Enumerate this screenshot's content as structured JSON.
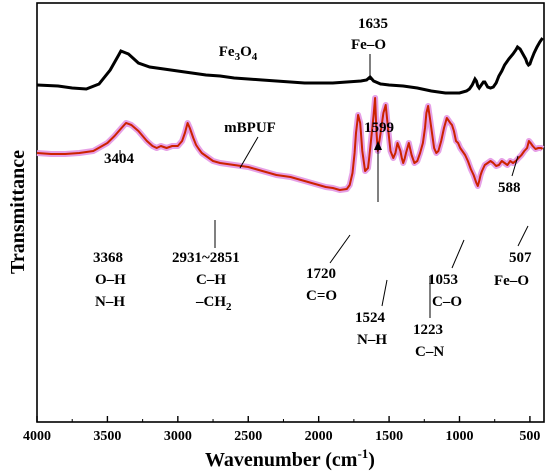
{
  "chart_data": {
    "type": "line",
    "title": "",
    "xlabel": "Wavenumber (cm",
    "xlabel_sup": "-1",
    "xlabel_close": ")",
    "ylabel": "Transmittance",
    "xlim": [
      4000,
      400
    ],
    "x_reversed": true,
    "x_ticks": [
      "4000",
      "3500",
      "3000",
      "2500",
      "2000",
      "1500",
      "1000",
      "500"
    ],
    "y_ticks_shown": false,
    "grid": false,
    "series": [
      {
        "name_parts": [
          {
            "t": "Fe",
            "sub": false
          },
          {
            "t": "3",
            "sub": true
          },
          {
            "t": "O",
            "sub": false
          },
          {
            "t": "4",
            "sub": true
          }
        ],
        "color": "#000000",
        "x": [
          4000,
          3850,
          3750,
          3650,
          3560,
          3480,
          3420,
          3404,
          3350,
          3280,
          3200,
          3100,
          3000,
          2900,
          2800,
          2700,
          2600,
          2500,
          2400,
          2300,
          2200,
          2100,
          2000,
          1900,
          1800,
          1700,
          1660,
          1635,
          1610,
          1560,
          1500,
          1400,
          1300,
          1200,
          1100,
          1000,
          950,
          930,
          910,
          890,
          880,
          870,
          860,
          850,
          830,
          820,
          800,
          780,
          760,
          740,
          720,
          700,
          680,
          650,
          620,
          600,
          588,
          570,
          550,
          530,
          520,
          510,
          500,
          490,
          470,
          450,
          430,
          410
        ],
        "y": [
          82,
          83,
          85,
          86,
          81,
          67,
          52,
          48,
          51,
          60,
          64,
          66,
          68,
          70,
          72,
          73,
          75,
          76,
          77,
          78,
          79,
          80,
          80,
          80,
          79,
          78,
          77,
          74,
          78,
          81,
          82,
          83,
          85,
          88,
          90,
          90,
          88,
          86,
          82,
          76,
          78,
          83,
          85,
          83,
          79,
          79,
          84,
          85,
          84,
          80,
          73,
          68,
          62,
          56,
          51,
          47,
          44,
          46,
          51,
          56,
          60,
          62,
          61,
          57,
          50,
          44,
          39,
          35
        ],
        "annotations": [
          {
            "x": 3404,
            "lines": [
              "3404"
            ]
          },
          {
            "x": 1635,
            "lines": [
              "1635",
              "Fe–O"
            ]
          },
          {
            "x": 588,
            "lines": [
              "588"
            ]
          }
        ]
      },
      {
        "name": "mBPUF",
        "color": "#e090e0",
        "color_inner": "#cc2200",
        "x": [
          4000,
          3900,
          3800,
          3700,
          3600,
          3500,
          3450,
          3400,
          3368,
          3330,
          3280,
          3220,
          3180,
          3150,
          3120,
          3080,
          3040,
          3000,
          2970,
          2950,
          2931,
          2915,
          2890,
          2870,
          2851,
          2830,
          2800,
          2750,
          2700,
          2650,
          2600,
          2550,
          2500,
          2450,
          2400,
          2350,
          2300,
          2250,
          2200,
          2150,
          2100,
          2050,
          2000,
          1950,
          1900,
          1850,
          1800,
          1780,
          1760,
          1745,
          1735,
          1720,
          1705,
          1690,
          1670,
          1650,
          1640,
          1620,
          1610,
          1599,
          1590,
          1580,
          1560,
          1540,
          1524,
          1510,
          1490,
          1470,
          1455,
          1440,
          1420,
          1410,
          1400,
          1390,
          1380,
          1360,
          1340,
          1320,
          1300,
          1280,
          1260,
          1245,
          1235,
          1223,
          1210,
          1195,
          1180,
          1165,
          1150,
          1130,
          1110,
          1090,
          1075,
          1065,
          1053,
          1040,
          1025,
          1010,
          995,
          980,
          960,
          940,
          920,
          900,
          880,
          870,
          860,
          850,
          840,
          830,
          820,
          800,
          780,
          760,
          740,
          720,
          700,
          680,
          660,
          640,
          620,
          600,
          580,
          560,
          540,
          520,
          507,
          495,
          480,
          460,
          440,
          420,
          410
        ],
        "y": [
          150,
          151,
          151,
          150,
          148,
          140,
          133,
          125,
          120,
          122,
          128,
          138,
          143,
          145,
          143,
          145,
          143,
          143,
          138,
          130,
          120,
          125,
          135,
          142,
          146,
          150,
          153,
          158,
          160,
          161,
          162,
          163,
          164,
          166,
          168,
          170,
          172,
          173,
          174,
          176,
          178,
          180,
          182,
          184,
          185,
          187,
          186,
          182,
          170,
          150,
          130,
          112,
          120,
          148,
          168,
          165,
          153,
          126,
          112,
          95,
          128,
          148,
          130,
          110,
          102,
          122,
          148,
          155,
          150,
          140,
          148,
          155,
          160,
          156,
          150,
          140,
          152,
          160,
          158,
          150,
          140,
          125,
          110,
          103,
          115,
          130,
          145,
          150,
          148,
          138,
          125,
          115,
          118,
          120,
          122,
          128,
          138,
          140,
          145,
          148,
          152,
          158,
          166,
          172,
          180,
          183,
          178,
          172,
          168,
          165,
          162,
          160,
          158,
          160,
          163,
          162,
          158,
          160,
          162,
          158,
          160,
          158,
          155,
          152,
          148,
          145,
          138,
          140,
          143,
          146,
          145,
          145,
          146
        ]
      }
    ],
    "mbpuf_annotations": [
      {
        "lines_plain": [
          "3368",
          "O–H",
          "N–H"
        ]
      },
      {
        "lines_plain": [
          "2931~2851",
          "C–H"
        ],
        "last_line": [
          {
            "t": "–CH",
            "sub": false
          },
          {
            "t": "2",
            "sub": true
          }
        ]
      },
      {
        "lines_plain": [
          "1720",
          "C=O"
        ]
      },
      {
        "lines_plain": [
          "1599"
        ]
      },
      {
        "lines_plain": [
          "1524",
          "N–H"
        ]
      },
      {
        "lines_plain": [
          "1223",
          "C–N"
        ]
      },
      {
        "lines_plain": [
          "1053",
          "C–O"
        ]
      },
      {
        "lines_plain": [
          "507",
          "Fe–O"
        ]
      }
    ]
  }
}
